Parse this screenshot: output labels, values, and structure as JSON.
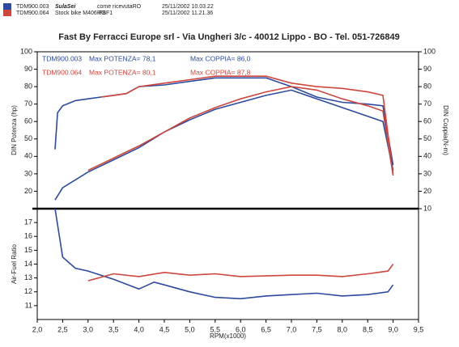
{
  "header": {
    "lines": [
      {
        "color": "#2c4aa0",
        "parts": [
          "TDM900.003",
          "SulaSei",
          "come ricevutaRO",
          "25/11/2002 10.03.22"
        ]
      },
      {
        "color": "#d0463c",
        "parts": [
          "TDM900.064",
          "Stock bike M406-FBF1",
          "RO",
          "25/11/2002 11.21.36"
        ]
      }
    ],
    "title": "Fast By Ferracci Europe srl - Via Ungheri 3/c - 40012 Lippo - BO - Tel. 051-726849"
  },
  "chart_data": [
    {
      "type": "line",
      "ylabel": "DIN Potenza (hp)",
      "y2label": "DIN Coppia(N-m)",
      "xlim": [
        2,
        9.5
      ],
      "ylim": [
        10,
        100
      ],
      "yticks": [
        20,
        30,
        40,
        50,
        60,
        70,
        80,
        90,
        100
      ],
      "y2lim": [
        10,
        100
      ],
      "y2ticks": [
        10,
        20,
        30,
        40,
        50,
        60,
        70,
        80,
        90,
        100
      ],
      "annotations": [
        {
          "color": "#2c4aa0",
          "parts": [
            "TDM900.003",
            "Max POTENZA= 78,1",
            "Max COPPIA= 86,0"
          ]
        },
        {
          "color": "#d0463c",
          "parts": [
            "TDM900.064",
            "Max POTENZA= 80,1",
            "Max COPPIA= 87,8"
          ]
        }
      ],
      "series": [
        {
          "color": "#2c4aa0",
          "axis": "y2",
          "x": [
            2.35,
            2.4,
            2.5,
            2.75,
            3.0,
            3.25,
            3.5,
            3.75,
            4.0,
            4.5,
            5.0,
            5.5,
            6.0,
            6.5,
            7.0,
            7.5,
            8.0,
            8.5,
            8.8,
            9.0
          ],
          "values": [
            44,
            65,
            69,
            72,
            73,
            74,
            75,
            76,
            80,
            81,
            83,
            85,
            85,
            85,
            80,
            74,
            71,
            70,
            69,
            35
          ]
        },
        {
          "color": "#d0463c",
          "axis": "y2",
          "x": [
            3.25,
            3.5,
            3.75,
            4.0,
            4.5,
            5.0,
            5.5,
            6.0,
            6.5,
            7.0,
            7.5,
            8.0,
            8.5,
            8.8,
            9.0
          ],
          "values": [
            74,
            75,
            76,
            80,
            82,
            84,
            86,
            86,
            86,
            82,
            80,
            79,
            77,
            75,
            30
          ]
        },
        {
          "color": "#2c4aa0",
          "x": [
            2.35,
            2.5,
            3.0,
            3.5,
            4.0,
            4.5,
            5.0,
            5.5,
            6.0,
            6.5,
            7.0,
            7.5,
            8.0,
            8.5,
            8.8,
            9.0
          ],
          "values": [
            15,
            22,
            31,
            38,
            45,
            54,
            61,
            67,
            71,
            75,
            78,
            73,
            68,
            63,
            60,
            32
          ]
        },
        {
          "color": "#d0463c",
          "x": [
            3.0,
            3.5,
            4.0,
            4.5,
            5.0,
            5.5,
            6.0,
            6.5,
            7.0,
            7.5,
            8.0,
            8.5,
            8.8,
            9.0
          ],
          "values": [
            32,
            39,
            46,
            54,
            62,
            68,
            73,
            77,
            80,
            78,
            73,
            69,
            66,
            29
          ]
        }
      ]
    },
    {
      "type": "line",
      "ylabel": "Air-Fuel Ratio",
      "xlabel": "RPM(x1000)",
      "xlim": [
        2,
        9.5
      ],
      "ylim": [
        10,
        18
      ],
      "yticks": [
        11,
        12,
        13,
        14,
        15,
        16,
        17
      ],
      "xticks": [
        {
          "value": 2,
          "label": "2,0"
        },
        {
          "value": 2.5,
          "label": "2,5"
        },
        {
          "value": 3,
          "label": "3,0"
        },
        {
          "value": 3.5,
          "label": "3,5"
        },
        {
          "value": 4,
          "label": "4,0"
        },
        {
          "value": 4.5,
          "label": "4,5"
        },
        {
          "value": 5,
          "label": "5,0"
        },
        {
          "value": 5.5,
          "label": "5,5"
        },
        {
          "value": 6,
          "label": "6,0"
        },
        {
          "value": 6.5,
          "label": "6,5"
        },
        {
          "value": 7,
          "label": "7,0"
        },
        {
          "value": 7.5,
          "label": "7,5"
        },
        {
          "value": 8,
          "label": "8,0"
        },
        {
          "value": 8.5,
          "label": "8,5"
        },
        {
          "value": 9,
          "label": "9,0"
        },
        {
          "value": 9.5,
          "label": "9,5"
        }
      ],
      "series": [
        {
          "color": "#2c4aa0",
          "x": [
            2.35,
            2.5,
            2.75,
            3.0,
            3.5,
            4.0,
            4.3,
            4.5,
            5.0,
            5.5,
            6.0,
            6.5,
            7.0,
            7.5,
            8.0,
            8.5,
            8.9,
            9.0
          ],
          "values": [
            18,
            14.5,
            13.7,
            13.5,
            12.9,
            12.2,
            12.7,
            12.5,
            12.0,
            11.6,
            11.5,
            11.7,
            11.8,
            11.9,
            11.7,
            11.8,
            12.0,
            12.5
          ]
        },
        {
          "color": "#d0463c",
          "x": [
            3.0,
            3.5,
            4.0,
            4.5,
            5.0,
            5.5,
            6.0,
            7.0,
            7.5,
            8.0,
            8.5,
            8.9,
            9.0
          ],
          "values": [
            12.8,
            13.3,
            13.1,
            13.4,
            13.2,
            13.3,
            13.1,
            13.2,
            13.2,
            13.1,
            13.3,
            13.5,
            14.0
          ]
        }
      ]
    }
  ]
}
